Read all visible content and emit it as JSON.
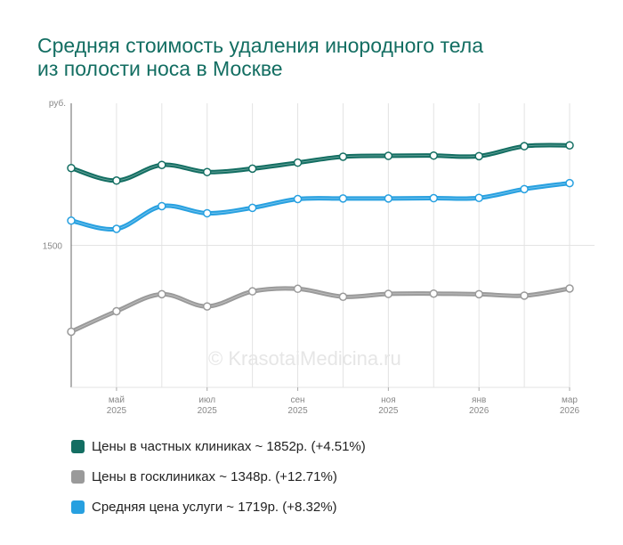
{
  "chart_data": {
    "type": "line",
    "title": [
      "Средняя стоимость удаления инородного тела",
      "из полости носа в Москве"
    ],
    "y_unit_label": "руб.",
    "y_ticks": [
      1500
    ],
    "ylim": [
      1000,
      2000
    ],
    "x_ticks": [
      {
        "month": "май",
        "year": "2025",
        "index": 1
      },
      {
        "month": "июл",
        "year": "2025",
        "index": 3
      },
      {
        "month": "сен",
        "year": "2025",
        "index": 5
      },
      {
        "month": "ноя",
        "year": "2025",
        "index": 7
      },
      {
        "month": "янв",
        "year": "2026",
        "index": 9
      },
      {
        "month": "мар",
        "year": "2026",
        "index": 11
      }
    ],
    "n_points": 12,
    "series": [
      {
        "name": "Цены в частных клиниках",
        "color": "#136e62",
        "values": [
          1772,
          1728,
          1783,
          1758,
          1770,
          1791,
          1812,
          1815,
          1816,
          1814,
          1849,
          1852
        ]
      },
      {
        "name": "Цены в госклиниках",
        "color": "#9a9a9a",
        "values": [
          1196,
          1268,
          1328,
          1285,
          1338,
          1347,
          1319,
          1329,
          1330,
          1328,
          1323,
          1348
        ]
      },
      {
        "name": "Средняя цена услуги",
        "color": "#27a0e0",
        "values": [
          1587,
          1558,
          1638,
          1613,
          1632,
          1663,
          1665,
          1665,
          1666,
          1667,
          1698,
          1719
        ]
      }
    ],
    "legend": [
      {
        "label": "Цены в частных клиниках ~ 1852р. (+4.51%)",
        "color": "#136e62"
      },
      {
        "label": "Цены в госклиниках ~ 1348р. (+12.71%)",
        "color": "#9a9a9a"
      },
      {
        "label": "Средняя цена услуги ~ 1719р. (+8.32%)",
        "color": "#27a0e0"
      }
    ],
    "legend_position": "bottom"
  },
  "watermark": "© KrasotaiMedicina.ru"
}
